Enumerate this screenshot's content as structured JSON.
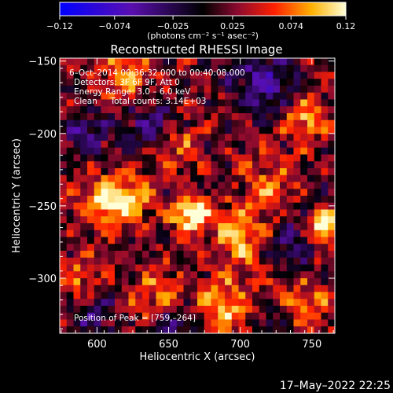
{
  "chart_data": {
    "type": "heatmap",
    "title": "Reconstructed RHESSI Image",
    "xlabel": "Heliocentric X (arcsec)",
    "ylabel": "Heliocentric Y (arcsec)",
    "xlim": [
      574,
      766
    ],
    "ylim": [
      -338,
      -148
    ],
    "x_ticks": [
      600,
      650,
      700,
      750
    ],
    "x_tick_labels": [
      "600",
      "650",
      "700",
      "750"
    ],
    "y_ticks": [
      -150,
      -200,
      -250,
      -300
    ],
    "y_tick_labels": [
      "−150",
      "−200",
      "−250",
      "−300"
    ],
    "colorbar": {
      "range": [
        -0.12,
        0.12
      ],
      "ticks": [
        -0.12,
        -0.074,
        -0.025,
        0.025,
        0.074,
        0.12
      ],
      "tick_labels": [
        "−0.12",
        "−0.074",
        "−0.025",
        "0.025",
        "0.074",
        "0.12"
      ],
      "units_label": "(photons cm⁻² s⁻¹ asec⁻²)"
    },
    "annotations": {
      "time_range": "6–Oct–2014 00:36:32.000 to 00:40:08.000",
      "detectors": "Detectors: 3F 6F 9F, Att 0",
      "energy": "Energy Range: 3.0 – 6.0 keV",
      "method": "Clean     Total counts: 3.14E+03",
      "peak": "Position of Peak = [759,–264]"
    },
    "peak": [
      759,
      -264
    ],
    "sources": [
      {
        "x": 665,
        "y": -255,
        "amp": 0.11,
        "sigma": 9
      },
      {
        "x": 759,
        "y": -264,
        "amp": 0.12,
        "sigma": 7
      },
      {
        "x": 620,
        "y": -248,
        "amp": 0.085,
        "sigma": 12
      },
      {
        "x": 600,
        "y": -245,
        "amp": 0.07,
        "sigma": 10
      },
      {
        "x": 700,
        "y": -270,
        "amp": 0.07,
        "sigma": 14
      },
      {
        "x": 745,
        "y": -190,
        "amp": 0.075,
        "sigma": 10
      },
      {
        "x": 690,
        "y": -320,
        "amp": 0.065,
        "sigma": 14
      },
      {
        "x": 620,
        "y": -160,
        "amp": 0.06,
        "sigma": 12
      },
      {
        "x": 655,
        "y": -205,
        "amp": 0.055,
        "sigma": 12
      },
      {
        "x": 720,
        "y": -235,
        "amp": 0.055,
        "sigma": 12
      },
      {
        "x": 585,
        "y": -300,
        "amp": 0.05,
        "sigma": 10
      },
      {
        "x": 745,
        "y": -320,
        "amp": 0.055,
        "sigma": 12
      },
      {
        "x": 640,
        "y": -310,
        "amp": 0.05,
        "sigma": 12
      }
    ],
    "negatives": [
      {
        "x": 715,
        "y": -165,
        "amp": -0.08,
        "sigma": 14
      },
      {
        "x": 640,
        "y": -195,
        "amp": -0.07,
        "sigma": 12
      },
      {
        "x": 592,
        "y": -200,
        "amp": -0.06,
        "sigma": 11
      },
      {
        "x": 735,
        "y": -275,
        "amp": -0.06,
        "sigma": 10
      },
      {
        "x": 600,
        "y": -325,
        "amp": -0.055,
        "sigma": 10
      },
      {
        "x": 655,
        "y": -335,
        "amp": -0.05,
        "sigma": 9
      },
      {
        "x": 720,
        "y": -335,
        "amp": -0.05,
        "sigma": 9
      }
    ],
    "grid": false
  },
  "footer": {
    "timestamp": "17–May–2022 22:25"
  }
}
